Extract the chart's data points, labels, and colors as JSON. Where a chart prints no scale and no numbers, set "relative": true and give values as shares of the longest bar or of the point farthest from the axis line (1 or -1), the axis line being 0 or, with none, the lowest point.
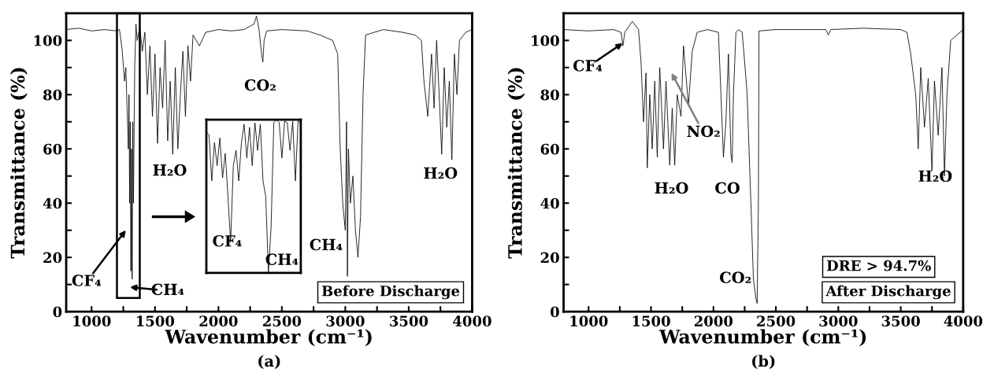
{
  "chart_data": [
    {
      "type": "line",
      "xlabel": "Wavenumber (cm⁻¹)",
      "ylabel": "Transmittance (%)",
      "xlim": [
        800,
        4000
      ],
      "ylim": [
        0,
        110
      ],
      "xticks": [
        1000,
        {
          "value": 1250,
          "label": null
        },
        1500,
        {
          "value": 1750,
          "label": null
        },
        2000,
        {
          "value": 2250,
          "label": null
        },
        2500,
        {
          "value": 2750,
          "label": null
        },
        3000,
        {
          "value": 3250,
          "label": null
        },
        3500,
        {
          "value": 3750,
          "label": null
        },
        4000
      ],
      "yticks": [
        0,
        {
          "value": 10,
          "label": null
        },
        20,
        {
          "value": 30,
          "label": null
        },
        40,
        {
          "value": 50,
          "label": null
        },
        60,
        {
          "value": 70,
          "label": null
        },
        80,
        {
          "value": 90,
          "label": null
        },
        100
      ],
      "series": [
        {
          "color": "#000000",
          "x": [
            800,
            900,
            1000,
            1100,
            1200,
            1220,
            1240,
            1260,
            1270,
            1280,
            1290,
            1295,
            1300,
            1305,
            1310,
            1315,
            1320,
            1325,
            1330,
            1340,
            1350,
            1360,
            1380,
            1400,
            1420,
            1440,
            1460,
            1480,
            1500,
            1520,
            1540,
            1560,
            1580,
            1600,
            1620,
            1640,
            1660,
            1680,
            1700,
            1720,
            1740,
            1760,
            1780,
            1800,
            1850,
            1900,
            2000,
            2100,
            2200,
            2280,
            2300,
            2320,
            2340,
            2350,
            2360,
            2380,
            2500,
            2700,
            2800,
            2900,
            2940,
            2960,
            2980,
            3000,
            3010,
            3017,
            3025,
            3040,
            3060,
            3080,
            3100,
            3120,
            3140,
            3160,
            3300,
            3450,
            3550,
            3600,
            3620,
            3650,
            3680,
            3700,
            3720,
            3740,
            3760,
            3780,
            3800,
            3820,
            3840,
            3860,
            3880,
            3900,
            3950,
            4000
          ],
          "values": [
            104,
            104.5,
            103.5,
            104,
            103.5,
            104,
            97,
            85,
            90,
            75,
            60,
            80,
            40,
            70,
            15,
            60,
            12,
            70,
            40,
            90,
            106,
            100,
            105,
            96,
            103,
            80,
            98,
            72,
            95,
            62,
            90,
            75,
            100,
            63,
            85,
            58,
            90,
            60,
            80,
            96,
            72,
            98,
            85,
            102,
            98,
            103,
            104,
            103.5,
            104,
            106,
            109,
            104,
            95,
            92,
            100,
            103.5,
            104,
            103.5,
            102,
            100,
            95,
            60,
            40,
            30,
            70,
            13,
            60,
            40,
            50,
            30,
            20,
            35,
            80,
            102,
            104,
            103,
            102,
            100,
            85,
            72,
            95,
            75,
            100,
            80,
            58,
            90,
            68,
            85,
            56,
            95,
            80,
            100,
            103,
            104
          ]
        }
      ],
      "annotations": [
        "CO₂",
        "H₂O",
        "H₂O",
        "CH₄",
        "CF₄",
        "CH₄",
        "Before Discharge",
        "(a)"
      ]
    },
    {
      "type": "line",
      "xlabel": "Wavenumber (cm⁻¹)",
      "ylabel": "Transmittance (%)",
      "xlim": [
        800,
        4000
      ],
      "ylim": [
        0,
        110
      ],
      "xticks": [
        1000,
        {
          "value": 1250,
          "label": null
        },
        1500,
        {
          "value": 1750,
          "label": null
        },
        2000,
        {
          "value": 2250,
          "label": null
        },
        2500,
        {
          "value": 2750,
          "label": null
        },
        3000,
        {
          "value": 3250,
          "label": null
        },
        3500,
        {
          "value": 3750,
          "label": null
        },
        4000
      ],
      "yticks": [
        0,
        {
          "value": 10,
          "label": null
        },
        20,
        {
          "value": 30,
          "label": null
        },
        40,
        {
          "value": 50,
          "label": null
        },
        60,
        {
          "value": 70,
          "label": null
        },
        80,
        {
          "value": 90,
          "label": null
        },
        100
      ],
      "series": [
        {
          "color": "#000000",
          "x": [
            800,
            1000,
            1200,
            1260,
            1275,
            1290,
            1350,
            1400,
            1420,
            1440,
            1460,
            1470,
            1490,
            1510,
            1530,
            1550,
            1570,
            1600,
            1620,
            1650,
            1670,
            1690,
            1710,
            1740,
            1760,
            1800,
            1830,
            1870,
            1950,
            2040,
            2060,
            2080,
            2100,
            2120,
            2140,
            2150,
            2160,
            2180,
            2200,
            2230,
            2250,
            2270,
            2300,
            2320,
            2340,
            2350,
            2360,
            2365,
            2500,
            2900,
            2920,
            2940,
            3200,
            3500,
            3550,
            3580,
            3620,
            3640,
            3660,
            3690,
            3720,
            3750,
            3770,
            3800,
            3830,
            3850,
            3870,
            3900,
            3950,
            4000
          ],
          "values": [
            104,
            103.5,
            104,
            103,
            98,
            103,
            107,
            104,
            92,
            70,
            88,
            53,
            80,
            60,
            85,
            57,
            90,
            60,
            85,
            54,
            75,
            54,
            80,
            72,
            98,
            76,
            96,
            103,
            104,
            103,
            80,
            57,
            70,
            95,
            58,
            55,
            80,
            103,
            104,
            103,
            92,
            80,
            40,
            12,
            5,
            3,
            40,
            103.5,
            104,
            104,
            102,
            104,
            104.5,
            104,
            103,
            95,
            80,
            60,
            90,
            68,
            86,
            52,
            85,
            65,
            90,
            50,
            80,
            100,
            102,
            104
          ]
        }
      ],
      "annotations": [
        "CF₄",
        "NO₂",
        "H₂O",
        "CO",
        "CO₂",
        "H₂O",
        "DRE > 94.7%",
        "After Discharge",
        "(b)"
      ]
    },
    {
      "type": "line",
      "relative": true,
      "categories": [
        null,
        null,
        null,
        null,
        null,
        null,
        null,
        null,
        null,
        null,
        null,
        null,
        null,
        null,
        null,
        null,
        null,
        null,
        null,
        null,
        null,
        null,
        null,
        null,
        null,
        null,
        null,
        null,
        null,
        null,
        null,
        null,
        null,
        null,
        null,
        null
      ],
      "series": [
        {
          "color": "#000000",
          "values": [
            0.92,
            0.9,
            0.6,
            0.85,
            0.7,
            0.88,
            0.62,
            0.78,
            0.5,
            0.2,
            0.7,
            0.8,
            0.6,
            0.85,
            0.97,
            0.75,
            0.95,
            0.7,
            0.98,
            0.8,
            0.97,
            0.6,
            0.5,
            0.0,
            0.3,
            0.98,
            1.0,
            0.98,
            0.75,
            0.99,
            0.98,
            0.8,
            0.99,
            0.6,
            0.99,
            0.98
          ]
        }
      ],
      "annotations": [
        "CF₄",
        "CH₄"
      ]
    }
  ]
}
